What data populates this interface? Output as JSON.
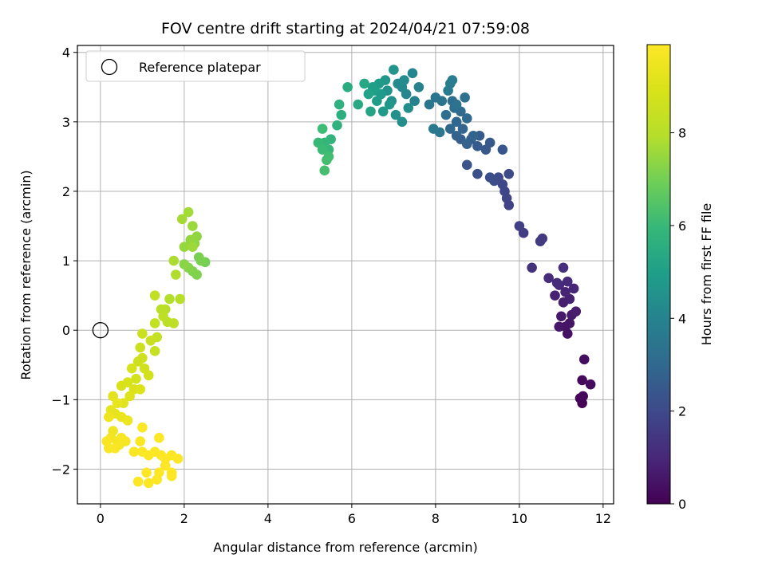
{
  "chart_data": {
    "type": "scatter",
    "title": "FOV centre drift starting at 2024/04/21 07:59:08",
    "xlabel": "Angular distance from reference (arcmin)",
    "ylabel": "Rotation from reference (arcmin)",
    "xlim": [
      -0.55,
      12.25
    ],
    "ylim": [
      -2.5,
      4.1
    ],
    "xticks": [
      0,
      2,
      4,
      6,
      8,
      10,
      12
    ],
    "yticks": [
      -2,
      -1,
      0,
      1,
      2,
      3,
      4
    ],
    "grid": true,
    "legend": {
      "placement": "top-left",
      "entries": [
        "Reference platepar"
      ]
    },
    "colorbar": {
      "label": "Hours from first FF file",
      "colormap": "viridis",
      "range": [
        0,
        9.9
      ],
      "ticks": [
        0,
        2,
        4,
        6,
        8
      ]
    },
    "reference_point": {
      "x": 0,
      "y": 0,
      "name": "Reference platepar",
      "marker": "open-circle"
    },
    "points": [
      {
        "x": 11.5,
        "y": -1.05,
        "t": 0.05
      },
      {
        "x": 11.45,
        "y": -0.98,
        "t": 0.1
      },
      {
        "x": 11.52,
        "y": -0.95,
        "t": 0.15
      },
      {
        "x": 11.5,
        "y": -0.72,
        "t": 0.2
      },
      {
        "x": 11.7,
        "y": -0.78,
        "t": 0.25
      },
      {
        "x": 11.55,
        "y": -0.42,
        "t": 0.3
      },
      {
        "x": 11.15,
        "y": -0.05,
        "t": 0.4
      },
      {
        "x": 11.1,
        "y": 0.05,
        "t": 0.45
      },
      {
        "x": 11.2,
        "y": 0.1,
        "t": 0.5
      },
      {
        "x": 10.95,
        "y": 0.05,
        "t": 0.55
      },
      {
        "x": 11.0,
        "y": 0.2,
        "t": 0.6
      },
      {
        "x": 11.25,
        "y": 0.22,
        "t": 0.65
      },
      {
        "x": 11.35,
        "y": 0.27,
        "t": 0.7
      },
      {
        "x": 11.05,
        "y": 0.4,
        "t": 0.75
      },
      {
        "x": 11.2,
        "y": 0.45,
        "t": 0.8
      },
      {
        "x": 10.85,
        "y": 0.5,
        "t": 0.85
      },
      {
        "x": 11.1,
        "y": 0.55,
        "t": 0.9
      },
      {
        "x": 11.3,
        "y": 0.6,
        "t": 0.95
      },
      {
        "x": 10.95,
        "y": 0.65,
        "t": 1.0
      },
      {
        "x": 11.15,
        "y": 0.7,
        "t": 1.05
      },
      {
        "x": 10.7,
        "y": 0.75,
        "t": 1.1
      },
      {
        "x": 10.9,
        "y": 0.68,
        "t": 1.15
      },
      {
        "x": 11.05,
        "y": 0.9,
        "t": 1.2
      },
      {
        "x": 10.3,
        "y": 0.9,
        "t": 1.3
      },
      {
        "x": 10.55,
        "y": 1.32,
        "t": 1.5
      },
      {
        "x": 10.5,
        "y": 1.28,
        "t": 1.55
      },
      {
        "x": 10.1,
        "y": 1.4,
        "t": 1.6
      },
      {
        "x": 10.0,
        "y": 1.5,
        "t": 1.7
      },
      {
        "x": 9.75,
        "y": 1.8,
        "t": 1.8
      },
      {
        "x": 9.7,
        "y": 1.9,
        "t": 1.85
      },
      {
        "x": 9.65,
        "y": 2.0,
        "t": 1.9
      },
      {
        "x": 9.6,
        "y": 2.1,
        "t": 1.95
      },
      {
        "x": 9.5,
        "y": 2.2,
        "t": 2.0
      },
      {
        "x": 9.75,
        "y": 2.25,
        "t": 2.05
      },
      {
        "x": 9.4,
        "y": 2.15,
        "t": 2.1
      },
      {
        "x": 9.3,
        "y": 2.2,
        "t": 2.15
      },
      {
        "x": 9.0,
        "y": 2.25,
        "t": 2.2
      },
      {
        "x": 8.75,
        "y": 2.38,
        "t": 2.3
      },
      {
        "x": 9.6,
        "y": 2.6,
        "t": 2.4
      },
      {
        "x": 9.2,
        "y": 2.6,
        "t": 2.45
      },
      {
        "x": 9.3,
        "y": 2.7,
        "t": 2.5
      },
      {
        "x": 9.0,
        "y": 2.65,
        "t": 2.55
      },
      {
        "x": 9.05,
        "y": 2.8,
        "t": 2.6
      },
      {
        "x": 8.85,
        "y": 2.75,
        "t": 2.65
      },
      {
        "x": 8.6,
        "y": 2.75,
        "t": 2.7
      },
      {
        "x": 8.75,
        "y": 2.68,
        "t": 2.75
      },
      {
        "x": 8.5,
        "y": 2.8,
        "t": 2.8
      },
      {
        "x": 8.9,
        "y": 2.8,
        "t": 2.85
      },
      {
        "x": 8.65,
        "y": 2.9,
        "t": 2.9
      },
      {
        "x": 8.5,
        "y": 3.0,
        "t": 2.95
      },
      {
        "x": 8.35,
        "y": 2.9,
        "t": 3.0
      },
      {
        "x": 8.75,
        "y": 3.05,
        "t": 3.05
      },
      {
        "x": 8.6,
        "y": 3.15,
        "t": 3.1
      },
      {
        "x": 8.45,
        "y": 3.2,
        "t": 3.15
      },
      {
        "x": 8.25,
        "y": 3.1,
        "t": 3.2
      },
      {
        "x": 8.4,
        "y": 3.3,
        "t": 3.25
      },
      {
        "x": 8.7,
        "y": 3.35,
        "t": 3.3
      },
      {
        "x": 8.5,
        "y": 3.25,
        "t": 3.35
      },
      {
        "x": 8.15,
        "y": 3.3,
        "t": 3.4
      },
      {
        "x": 8.0,
        "y": 3.35,
        "t": 3.45
      },
      {
        "x": 7.85,
        "y": 3.25,
        "t": 3.5
      },
      {
        "x": 8.1,
        "y": 2.85,
        "t": 3.55
      },
      {
        "x": 7.95,
        "y": 2.9,
        "t": 3.6
      },
      {
        "x": 8.3,
        "y": 3.45,
        "t": 3.7
      },
      {
        "x": 8.35,
        "y": 3.55,
        "t": 3.75
      },
      {
        "x": 8.4,
        "y": 3.6,
        "t": 3.8
      },
      {
        "x": 7.5,
        "y": 3.3,
        "t": 3.9
      },
      {
        "x": 7.6,
        "y": 3.5,
        "t": 4.0
      },
      {
        "x": 7.45,
        "y": 3.7,
        "t": 4.05
      },
      {
        "x": 7.3,
        "y": 3.4,
        "t": 4.1
      },
      {
        "x": 7.2,
        "y": 3.5,
        "t": 4.2
      },
      {
        "x": 7.1,
        "y": 3.55,
        "t": 4.25
      },
      {
        "x": 7.25,
        "y": 3.6,
        "t": 4.3
      },
      {
        "x": 7.35,
        "y": 3.2,
        "t": 4.35
      },
      {
        "x": 7.2,
        "y": 3.0,
        "t": 4.4
      },
      {
        "x": 7.05,
        "y": 3.1,
        "t": 4.45
      },
      {
        "x": 6.95,
        "y": 3.3,
        "t": 4.5
      },
      {
        "x": 6.85,
        "y": 3.45,
        "t": 4.55
      },
      {
        "x": 7.0,
        "y": 3.75,
        "t": 4.6
      },
      {
        "x": 6.8,
        "y": 3.6,
        "t": 4.65
      },
      {
        "x": 6.9,
        "y": 3.25,
        "t": 4.7
      },
      {
        "x": 6.75,
        "y": 3.15,
        "t": 4.75
      },
      {
        "x": 6.7,
        "y": 3.4,
        "t": 4.8
      },
      {
        "x": 6.65,
        "y": 3.55,
        "t": 4.85
      },
      {
        "x": 6.6,
        "y": 3.3,
        "t": 4.9
      },
      {
        "x": 6.55,
        "y": 3.45,
        "t": 4.95
      },
      {
        "x": 6.5,
        "y": 3.5,
        "t": 5.0
      },
      {
        "x": 6.4,
        "y": 3.4,
        "t": 5.1
      },
      {
        "x": 6.45,
        "y": 3.15,
        "t": 5.2
      },
      {
        "x": 6.3,
        "y": 3.55,
        "t": 5.3
      },
      {
        "x": 6.15,
        "y": 3.25,
        "t": 5.4
      },
      {
        "x": 5.9,
        "y": 3.5,
        "t": 5.5
      },
      {
        "x": 5.75,
        "y": 3.1,
        "t": 5.6
      },
      {
        "x": 5.7,
        "y": 3.25,
        "t": 5.65
      },
      {
        "x": 5.65,
        "y": 2.95,
        "t": 5.7
      },
      {
        "x": 5.5,
        "y": 2.75,
        "t": 5.8
      },
      {
        "x": 5.35,
        "y": 2.7,
        "t": 5.9
      },
      {
        "x": 5.45,
        "y": 2.6,
        "t": 5.95
      },
      {
        "x": 5.2,
        "y": 2.7,
        "t": 6.0
      },
      {
        "x": 5.3,
        "y": 2.6,
        "t": 6.05
      },
      {
        "x": 5.3,
        "y": 2.9,
        "t": 6.1
      },
      {
        "x": 5.45,
        "y": 2.5,
        "t": 6.15
      },
      {
        "x": 5.4,
        "y": 2.45,
        "t": 6.2
      },
      {
        "x": 5.35,
        "y": 2.3,
        "t": 6.25
      },
      {
        "x": 2.5,
        "y": 0.98,
        "t": 7.0
      },
      {
        "x": 2.35,
        "y": 1.05,
        "t": 7.05
      },
      {
        "x": 2.4,
        "y": 1.0,
        "t": 7.1
      },
      {
        "x": 2.3,
        "y": 0.8,
        "t": 7.15
      },
      {
        "x": 2.2,
        "y": 0.85,
        "t": 7.2
      },
      {
        "x": 2.1,
        "y": 0.9,
        "t": 7.25
      },
      {
        "x": 2.0,
        "y": 0.95,
        "t": 7.3
      },
      {
        "x": 2.25,
        "y": 1.25,
        "t": 7.35
      },
      {
        "x": 2.3,
        "y": 1.35,
        "t": 7.4
      },
      {
        "x": 2.15,
        "y": 1.3,
        "t": 7.45
      },
      {
        "x": 2.0,
        "y": 1.2,
        "t": 7.5
      },
      {
        "x": 2.2,
        "y": 1.5,
        "t": 7.55
      },
      {
        "x": 2.2,
        "y": 1.2,
        "t": 7.6
      },
      {
        "x": 2.1,
        "y": 1.7,
        "t": 7.65
      },
      {
        "x": 1.95,
        "y": 1.6,
        "t": 7.7
      },
      {
        "x": 1.75,
        "y": 1.0,
        "t": 7.8
      },
      {
        "x": 1.8,
        "y": 0.8,
        "t": 7.85
      },
      {
        "x": 1.65,
        "y": 0.45,
        "t": 7.9
      },
      {
        "x": 1.9,
        "y": 0.45,
        "t": 7.95
      },
      {
        "x": 1.55,
        "y": 0.3,
        "t": 8.0
      },
      {
        "x": 1.45,
        "y": 0.3,
        "t": 8.05
      },
      {
        "x": 1.6,
        "y": 0.12,
        "t": 8.1
      },
      {
        "x": 1.75,
        "y": 0.1,
        "t": 8.15
      },
      {
        "x": 1.5,
        "y": 0.2,
        "t": 8.2
      },
      {
        "x": 1.3,
        "y": 0.5,
        "t": 8.25
      },
      {
        "x": 1.3,
        "y": 0.1,
        "t": 8.3
      },
      {
        "x": 1.35,
        "y": -0.1,
        "t": 8.35
      },
      {
        "x": 1.3,
        "y": -0.3,
        "t": 8.4
      },
      {
        "x": 1.2,
        "y": -0.15,
        "t": 8.45
      },
      {
        "x": 1.0,
        "y": -0.05,
        "t": 8.5
      },
      {
        "x": 0.95,
        "y": -0.25,
        "t": 8.55
      },
      {
        "x": 1.0,
        "y": -0.4,
        "t": 8.6
      },
      {
        "x": 0.9,
        "y": -0.45,
        "t": 8.65
      },
      {
        "x": 1.05,
        "y": -0.55,
        "t": 8.7
      },
      {
        "x": 1.15,
        "y": -0.65,
        "t": 8.75
      },
      {
        "x": 0.85,
        "y": -0.7,
        "t": 8.8
      },
      {
        "x": 0.75,
        "y": -0.55,
        "t": 8.85
      },
      {
        "x": 0.65,
        "y": -0.75,
        "t": 8.9
      },
      {
        "x": 0.5,
        "y": -0.8,
        "t": 8.95
      },
      {
        "x": 0.8,
        "y": -0.85,
        "t": 9.0
      },
      {
        "x": 0.95,
        "y": -0.85,
        "t": 9.05
      },
      {
        "x": 0.7,
        "y": -0.95,
        "t": 9.1
      },
      {
        "x": 0.55,
        "y": -1.05,
        "t": 9.15
      },
      {
        "x": 0.3,
        "y": -0.95,
        "t": 9.2
      },
      {
        "x": 0.25,
        "y": -1.15,
        "t": 9.25
      },
      {
        "x": 0.35,
        "y": -1.2,
        "t": 9.3
      },
      {
        "x": 0.4,
        "y": -1.05,
        "t": 9.35
      },
      {
        "x": 0.5,
        "y": -1.25,
        "t": 9.4
      },
      {
        "x": 0.65,
        "y": -1.3,
        "t": 9.45
      },
      {
        "x": 0.2,
        "y": -1.25,
        "t": 9.5
      },
      {
        "x": 0.3,
        "y": -1.45,
        "t": 9.55
      },
      {
        "x": 0.25,
        "y": -1.55,
        "t": 9.6
      },
      {
        "x": 0.4,
        "y": -1.6,
        "t": 9.65
      },
      {
        "x": 0.5,
        "y": -1.55,
        "t": 9.7
      },
      {
        "x": 0.6,
        "y": -1.6,
        "t": 9.72
      },
      {
        "x": 0.45,
        "y": -1.65,
        "t": 9.74
      },
      {
        "x": 0.15,
        "y": -1.6,
        "t": 9.76
      },
      {
        "x": 0.2,
        "y": -1.7,
        "t": 9.78
      },
      {
        "x": 0.35,
        "y": -1.7,
        "t": 9.8
      },
      {
        "x": 0.8,
        "y": -1.75,
        "t": 9.82
      },
      {
        "x": 0.95,
        "y": -1.6,
        "t": 9.83
      },
      {
        "x": 1.0,
        "y": -1.4,
        "t": 9.84
      },
      {
        "x": 1.0,
        "y": -1.75,
        "t": 9.85
      },
      {
        "x": 1.15,
        "y": -1.8,
        "t": 9.86
      },
      {
        "x": 1.3,
        "y": -1.75,
        "t": 9.87
      },
      {
        "x": 1.4,
        "y": -1.55,
        "t": 9.88
      },
      {
        "x": 1.45,
        "y": -1.8,
        "t": 9.89
      },
      {
        "x": 1.55,
        "y": -1.85,
        "t": 9.89
      },
      {
        "x": 1.7,
        "y": -1.8,
        "t": 9.9
      },
      {
        "x": 1.85,
        "y": -1.85,
        "t": 9.9
      },
      {
        "x": 1.55,
        "y": -1.95,
        "t": 9.9
      },
      {
        "x": 1.7,
        "y": -2.05,
        "t": 9.9
      },
      {
        "x": 1.7,
        "y": -2.1,
        "t": 9.9
      },
      {
        "x": 1.4,
        "y": -2.05,
        "t": 9.9
      },
      {
        "x": 1.1,
        "y": -2.05,
        "t": 9.9
      },
      {
        "x": 1.35,
        "y": -2.15,
        "t": 9.9
      },
      {
        "x": 1.15,
        "y": -2.2,
        "t": 9.9
      },
      {
        "x": 0.9,
        "y": -2.18,
        "t": 9.9
      }
    ]
  }
}
